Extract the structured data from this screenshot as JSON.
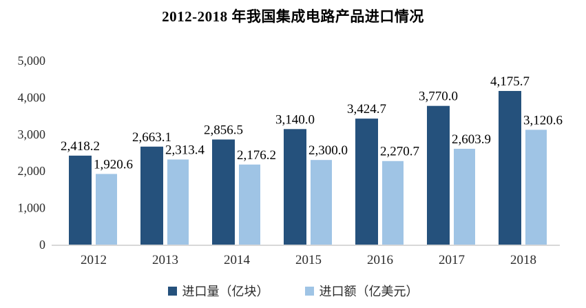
{
  "chart_data": {
    "type": "bar",
    "title": "2012-2018 年我国集成电路产品进口情况",
    "categories": [
      "2012",
      "2013",
      "2014",
      "2015",
      "2016",
      "2017",
      "2018"
    ],
    "series": [
      {
        "name": "进口量（亿块）",
        "color": "#25517c",
        "values": [
          2418.2,
          2663.1,
          2856.5,
          3140.0,
          3424.7,
          3770.0,
          4175.7
        ],
        "labels": [
          "2,418.2",
          "2,663.1",
          "2,856.5",
          "3,140.0",
          "3,424.7",
          "3,770.0",
          "4,175.7"
        ]
      },
      {
        "name": "进口额（亿美元）",
        "color": "#9fc4e5",
        "values": [
          1920.6,
          2313.4,
          2176.2,
          2300.0,
          2270.7,
          2603.9,
          3120.6
        ],
        "labels": [
          "1,920.6",
          "2,313.4",
          "2,176.2",
          "2,300.0",
          "2,270.7",
          "2,603.9",
          "3,120.6"
        ]
      }
    ],
    "ylim": [
      0,
      5000
    ],
    "ytick_labels": [
      "0",
      "1,000",
      "2,000",
      "3,000",
      "4,000",
      "5,000"
    ],
    "ytick_step": 1000,
    "grid": false,
    "legend_position": "bottom",
    "axis_line_color": "#d8d8d8",
    "text_color": "#2b2b2b"
  }
}
